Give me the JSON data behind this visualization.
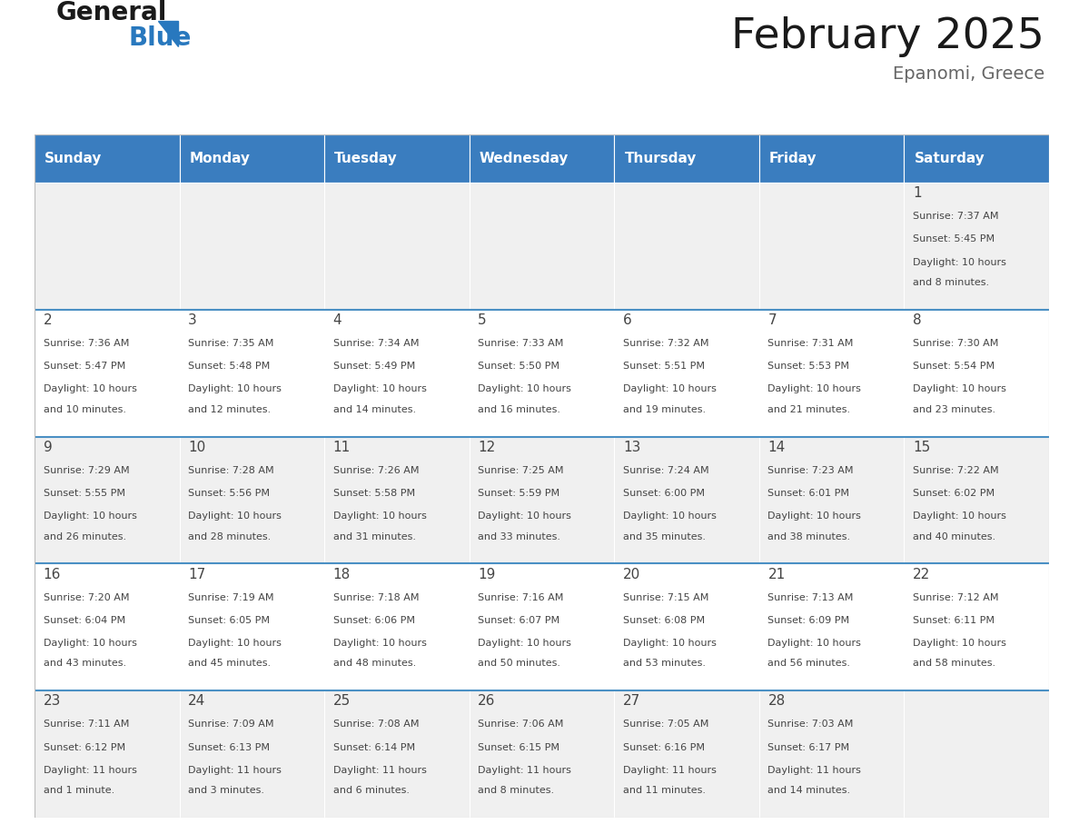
{
  "title": "February 2025",
  "subtitle": "Epanomi, Greece",
  "header_bg": "#3a7dbf",
  "header_text_color": "#ffffff",
  "cell_bg_even": "#f0f0f0",
  "cell_bg_odd": "#ffffff",
  "separator_color": "#4a90c4",
  "day_names": [
    "Sunday",
    "Monday",
    "Tuesday",
    "Wednesday",
    "Thursday",
    "Friday",
    "Saturday"
  ],
  "days": [
    {
      "date": 1,
      "col": 6,
      "row": 0,
      "sunrise": "7:37 AM",
      "sunset": "5:45 PM",
      "daylight": "10 hours and 8 minutes."
    },
    {
      "date": 2,
      "col": 0,
      "row": 1,
      "sunrise": "7:36 AM",
      "sunset": "5:47 PM",
      "daylight": "10 hours and 10 minutes."
    },
    {
      "date": 3,
      "col": 1,
      "row": 1,
      "sunrise": "7:35 AM",
      "sunset": "5:48 PM",
      "daylight": "10 hours and 12 minutes."
    },
    {
      "date": 4,
      "col": 2,
      "row": 1,
      "sunrise": "7:34 AM",
      "sunset": "5:49 PM",
      "daylight": "10 hours and 14 minutes."
    },
    {
      "date": 5,
      "col": 3,
      "row": 1,
      "sunrise": "7:33 AM",
      "sunset": "5:50 PM",
      "daylight": "10 hours and 16 minutes."
    },
    {
      "date": 6,
      "col": 4,
      "row": 1,
      "sunrise": "7:32 AM",
      "sunset": "5:51 PM",
      "daylight": "10 hours and 19 minutes."
    },
    {
      "date": 7,
      "col": 5,
      "row": 1,
      "sunrise": "7:31 AM",
      "sunset": "5:53 PM",
      "daylight": "10 hours and 21 minutes."
    },
    {
      "date": 8,
      "col": 6,
      "row": 1,
      "sunrise": "7:30 AM",
      "sunset": "5:54 PM",
      "daylight": "10 hours and 23 minutes."
    },
    {
      "date": 9,
      "col": 0,
      "row": 2,
      "sunrise": "7:29 AM",
      "sunset": "5:55 PM",
      "daylight": "10 hours and 26 minutes."
    },
    {
      "date": 10,
      "col": 1,
      "row": 2,
      "sunrise": "7:28 AM",
      "sunset": "5:56 PM",
      "daylight": "10 hours and 28 minutes."
    },
    {
      "date": 11,
      "col": 2,
      "row": 2,
      "sunrise": "7:26 AM",
      "sunset": "5:58 PM",
      "daylight": "10 hours and 31 minutes."
    },
    {
      "date": 12,
      "col": 3,
      "row": 2,
      "sunrise": "7:25 AM",
      "sunset": "5:59 PM",
      "daylight": "10 hours and 33 minutes."
    },
    {
      "date": 13,
      "col": 4,
      "row": 2,
      "sunrise": "7:24 AM",
      "sunset": "6:00 PM",
      "daylight": "10 hours and 35 minutes."
    },
    {
      "date": 14,
      "col": 5,
      "row": 2,
      "sunrise": "7:23 AM",
      "sunset": "6:01 PM",
      "daylight": "10 hours and 38 minutes."
    },
    {
      "date": 15,
      "col": 6,
      "row": 2,
      "sunrise": "7:22 AM",
      "sunset": "6:02 PM",
      "daylight": "10 hours and 40 minutes."
    },
    {
      "date": 16,
      "col": 0,
      "row": 3,
      "sunrise": "7:20 AM",
      "sunset": "6:04 PM",
      "daylight": "10 hours and 43 minutes."
    },
    {
      "date": 17,
      "col": 1,
      "row": 3,
      "sunrise": "7:19 AM",
      "sunset": "6:05 PM",
      "daylight": "10 hours and 45 minutes."
    },
    {
      "date": 18,
      "col": 2,
      "row": 3,
      "sunrise": "7:18 AM",
      "sunset": "6:06 PM",
      "daylight": "10 hours and 48 minutes."
    },
    {
      "date": 19,
      "col": 3,
      "row": 3,
      "sunrise": "7:16 AM",
      "sunset": "6:07 PM",
      "daylight": "10 hours and 50 minutes."
    },
    {
      "date": 20,
      "col": 4,
      "row": 3,
      "sunrise": "7:15 AM",
      "sunset": "6:08 PM",
      "daylight": "10 hours and 53 minutes."
    },
    {
      "date": 21,
      "col": 5,
      "row": 3,
      "sunrise": "7:13 AM",
      "sunset": "6:09 PM",
      "daylight": "10 hours and 56 minutes."
    },
    {
      "date": 22,
      "col": 6,
      "row": 3,
      "sunrise": "7:12 AM",
      "sunset": "6:11 PM",
      "daylight": "10 hours and 58 minutes."
    },
    {
      "date": 23,
      "col": 0,
      "row": 4,
      "sunrise": "7:11 AM",
      "sunset": "6:12 PM",
      "daylight": "11 hours and 1 minute."
    },
    {
      "date": 24,
      "col": 1,
      "row": 4,
      "sunrise": "7:09 AM",
      "sunset": "6:13 PM",
      "daylight": "11 hours and 3 minutes."
    },
    {
      "date": 25,
      "col": 2,
      "row": 4,
      "sunrise": "7:08 AM",
      "sunset": "6:14 PM",
      "daylight": "11 hours and 6 minutes."
    },
    {
      "date": 26,
      "col": 3,
      "row": 4,
      "sunrise": "7:06 AM",
      "sunset": "6:15 PM",
      "daylight": "11 hours and 8 minutes."
    },
    {
      "date": 27,
      "col": 4,
      "row": 4,
      "sunrise": "7:05 AM",
      "sunset": "6:16 PM",
      "daylight": "11 hours and 11 minutes."
    },
    {
      "date": 28,
      "col": 5,
      "row": 4,
      "sunrise": "7:03 AM",
      "sunset": "6:17 PM",
      "daylight": "11 hours and 14 minutes."
    }
  ],
  "num_rows": 5,
  "logo_color_general": "#1a1a1a",
  "logo_color_blue": "#2878be",
  "title_color": "#1a1a1a",
  "subtitle_color": "#666666",
  "text_color": "#444444",
  "fig_width": 11.88,
  "fig_height": 9.18,
  "dpi": 100,
  "title_fontsize": 34,
  "subtitle_fontsize": 14,
  "header_fontsize": 11,
  "date_fontsize": 11,
  "info_fontsize": 8
}
